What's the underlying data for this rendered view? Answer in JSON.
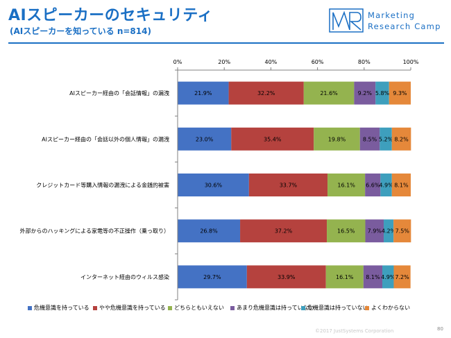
{
  "header": {
    "title": "AIスピーカーのセキュリティ",
    "subtitle": "(AIスピーカーを知っている n=814)",
    "logo_line1": "Marketing",
    "logo_line2": "Research Camp"
  },
  "footer": {
    "copyright": "©2017 JustSystems Corporation",
    "page": "80"
  },
  "chart_data": {
    "type": "bar",
    "orientation": "horizontal-stacked-100",
    "categories": [
      "AIスピーカー経由の「会話情報」の漏洩",
      "AIスピーカー経由の「会話以外の個人情報」の漏洩",
      "クレジットカード等購入情報の漏洩による金銭的被害",
      "外部からのハッキングによる家電等の不正操作（乗っ取り）",
      "インターネット経由のウィルス感染"
    ],
    "series": [
      {
        "name": "危機意識を持っている",
        "color": "#4472c4",
        "values": [
          21.9,
          23.0,
          30.6,
          26.8,
          29.7
        ]
      },
      {
        "name": "やや危機意識を持っている",
        "color": "#b5423e",
        "values": [
          32.2,
          35.4,
          33.7,
          37.2,
          33.9
        ]
      },
      {
        "name": "どちらともいえない",
        "color": "#94b34f",
        "values": [
          21.6,
          19.8,
          16.1,
          16.5,
          16.1
        ]
      },
      {
        "name": "あまり危機意識は持っていない",
        "color": "#7a5c9e",
        "values": [
          9.2,
          8.5,
          6.6,
          7.9,
          8.1
        ]
      },
      {
        "name": "危機意識は持っていない",
        "color": "#3e9fbd",
        "values": [
          5.8,
          5.2,
          4.9,
          4.2,
          4.9
        ]
      },
      {
        "name": "よくわからない",
        "color": "#e5883a",
        "values": [
          9.3,
          8.2,
          8.1,
          7.5,
          7.2
        ]
      }
    ],
    "data_labels": [
      [
        "21.9%",
        "32.2%",
        "21.6%",
        "9.2%",
        "5.8%",
        "9.3%"
      ],
      [
        "23.0%",
        "35.4%",
        "19.8%",
        "8.5%",
        "5.2%",
        "8.2%"
      ],
      [
        "30.6%",
        "33.7%",
        "16.1%",
        "6.6%",
        "4.9%",
        "8.1%"
      ],
      [
        "26.8%",
        "37.2%",
        "16.5%",
        "7.9%",
        "4.2%",
        "7.5%"
      ],
      [
        "29.7%",
        "33.9%",
        "16.1%",
        "8.1%",
        "4.9%",
        "7.2%"
      ]
    ],
    "x_ticks": [
      "0%",
      "20%",
      "40%",
      "60%",
      "80%",
      "100%"
    ],
    "xlim": [
      0,
      100
    ],
    "grid": false,
    "legend_position": "bottom"
  }
}
